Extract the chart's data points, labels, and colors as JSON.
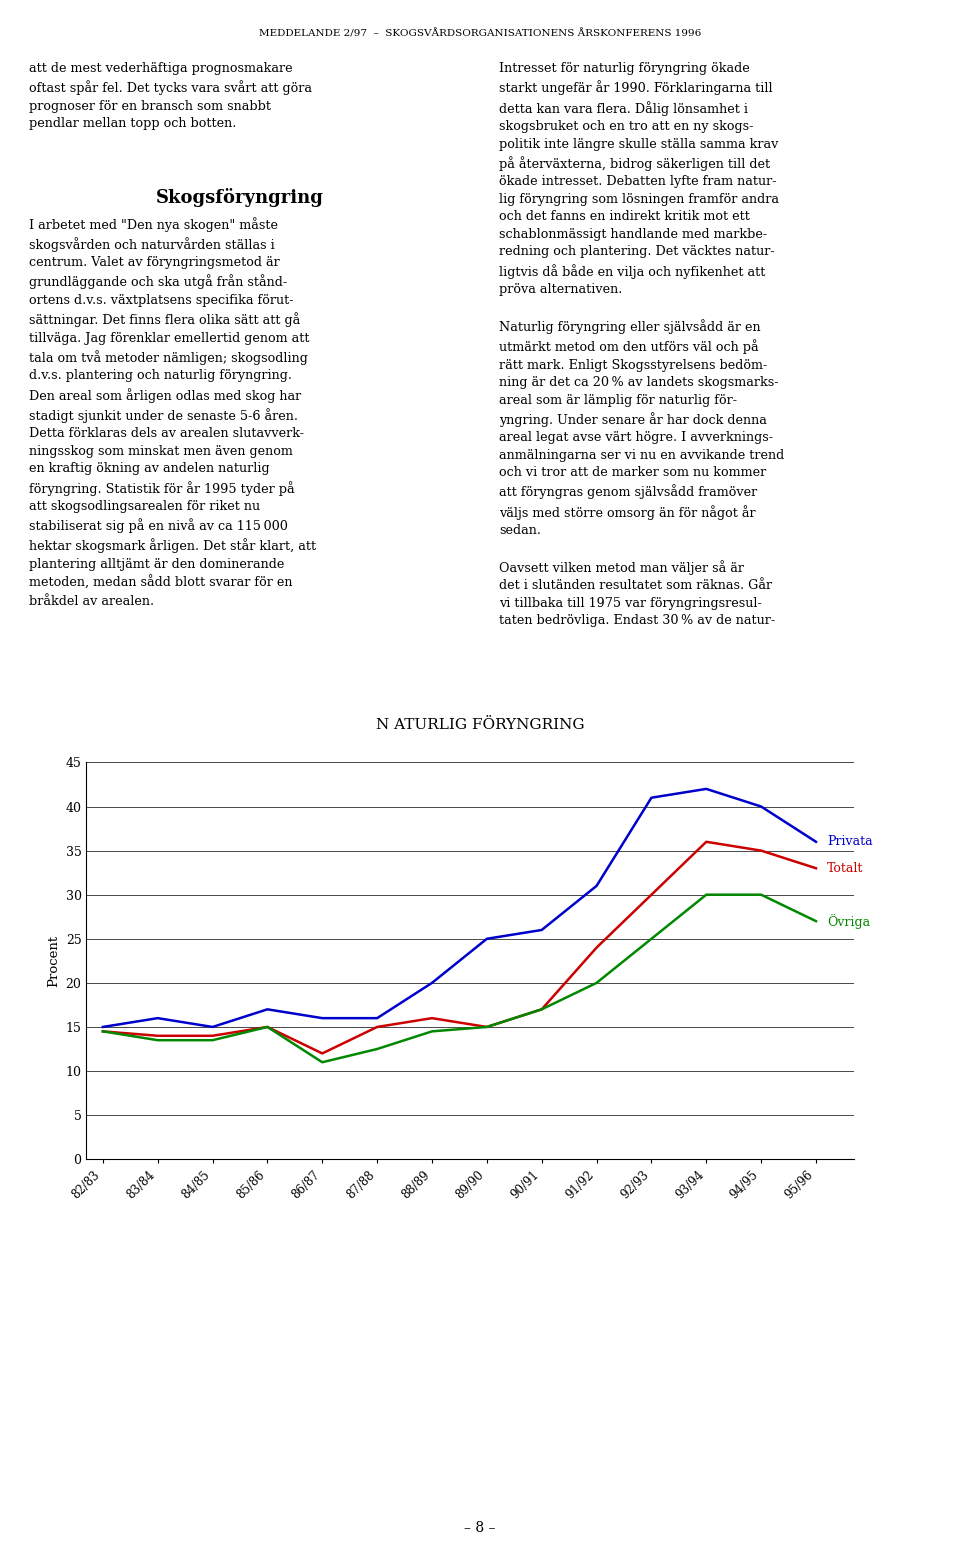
{
  "title_display": "N ATURLIG FÖRYNGRING",
  "ylabel": "Procent",
  "ylim": [
    0,
    45
  ],
  "yticks": [
    0,
    5,
    10,
    15,
    20,
    25,
    30,
    35,
    40,
    45
  ],
  "categories": [
    "82/83",
    "83/84",
    "84/85",
    "85/86",
    "86/87",
    "87/88",
    "88/89",
    "89/90",
    "90/91",
    "91/92",
    "92/93",
    "93/94",
    "94/95",
    "95/96"
  ],
  "privata": [
    15.0,
    16.0,
    15.0,
    17.0,
    16.0,
    16.0,
    20.0,
    25.0,
    26.0,
    31.0,
    41.0,
    42.0,
    40.0,
    36.0
  ],
  "totalt": [
    14.5,
    14.0,
    14.0,
    15.0,
    12.0,
    15.0,
    16.0,
    15.0,
    17.0,
    24.0,
    30.0,
    36.0,
    35.0,
    33.0
  ],
  "ovriga": [
    14.5,
    13.5,
    13.5,
    15.0,
    11.0,
    12.5,
    14.5,
    15.0,
    17.0,
    20.0,
    25.0,
    30.0,
    30.0,
    27.0
  ],
  "color_privata": "#0000CC",
  "color_totalt": "#CC0000",
  "color_ovriga": "#008800",
  "legend_privata": "Privata",
  "legend_totalt": "Totalt",
  "legend_ovriga": "Övriga",
  "background_color": "#ffffff",
  "page_header": "MEDDELANDE 2/97  –  SKOGSVÅRDSORGANISATIONENS ÅRSKONFERENS 1996",
  "page_footer": "– 8 –"
}
